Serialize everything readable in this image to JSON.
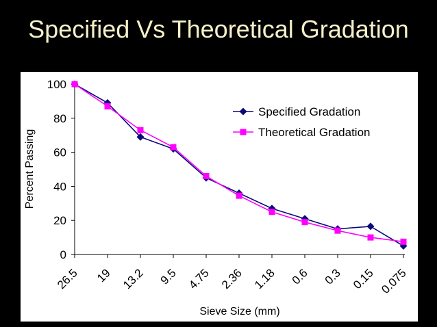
{
  "slide": {
    "title": "Specified Vs Theoretical Gradation"
  },
  "colors": {
    "background": "#000000",
    "title": "#F5F0C8",
    "panel": "#ffffff"
  },
  "chart_data": {
    "type": "line",
    "title": "",
    "xlabel": "Sieve Size (mm)",
    "ylabel": "Percent Passing",
    "categories": [
      "26.5",
      "19",
      "13.2",
      "9.5",
      "4.75",
      "2.36",
      "1.18",
      "0.6",
      "0.3",
      "0.15",
      "0.075"
    ],
    "ylim": [
      0,
      100
    ],
    "yticks": [
      0,
      20,
      40,
      60,
      80,
      100
    ],
    "grid": false,
    "legend_position": "top-right",
    "series": [
      {
        "name": "Specified Gradation",
        "color": "#0A0A78",
        "marker": "diamond",
        "values": [
          100,
          89,
          69,
          62,
          45,
          36,
          27,
          21,
          15,
          16.5,
          5
        ]
      },
      {
        "name": "Theoretical Gradation",
        "color": "#FF00FF",
        "marker": "square",
        "values": [
          100,
          87,
          73,
          63,
          46,
          34.5,
          25,
          19,
          14,
          10,
          7.5
        ]
      }
    ]
  }
}
